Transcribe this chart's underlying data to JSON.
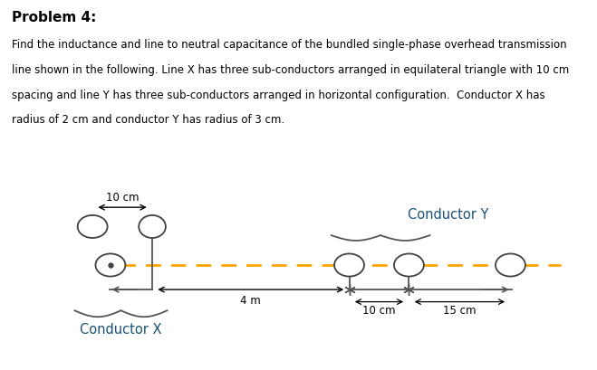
{
  "title": "Problem 4:",
  "description_lines": [
    "Find the inductance and line to neutral capacitance of the bundled single-phase overhead transmission",
    "line shown in the following. Line X has three sub-conductors arranged in equilateral triangle with 10 cm",
    "spacing and line Y has three sub-conductors arranged in horizontal configuration.  Conductor X has",
    "radius of 2 cm and conductor Y has radius of 3 cm."
  ],
  "fig_width": 6.59,
  "fig_height": 4.09,
  "dpi": 100,
  "background_color": "#ffffff",
  "label_x": "Conductor X",
  "label_y": "Conductor Y",
  "dim_10cm_top": "10 cm",
  "dim_4m": "4 m",
  "dim_10cm_bot": "10 cm",
  "dim_15cm": "15 cm",
  "dashed_line_color": "#FFA500",
  "conductor_edge_color": "#404040",
  "conductor_face_color": "#ffffff",
  "text_color": "#000000",
  "gray_color": "#555555"
}
